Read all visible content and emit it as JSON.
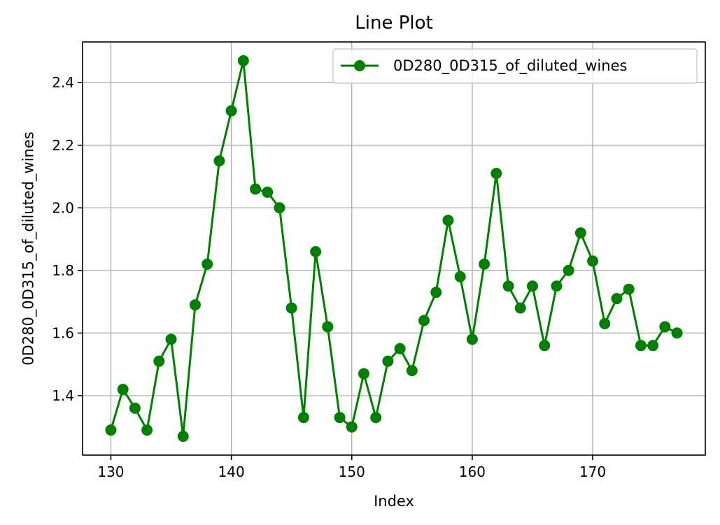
{
  "chart_data": {
    "type": "line",
    "title": "Line Plot",
    "xlabel": "Index",
    "ylabel": "0D280_0D315_of_diluted_wines",
    "xlim": [
      127.65,
      179.35
    ],
    "ylim": [
      1.21,
      2.53
    ],
    "xticks": [
      130,
      140,
      150,
      160,
      170
    ],
    "yticks": [
      1.4,
      1.6,
      1.8,
      2.0,
      2.2,
      2.4
    ],
    "ytick_labels": [
      "1.4",
      "1.6",
      "1.8",
      "2.0",
      "2.2",
      "2.4"
    ],
    "grid": true,
    "legend_position": "top-right",
    "series": [
      {
        "name": "0D280_0D315_of_diluted_wines",
        "color": "#008000",
        "marker": "circle",
        "x": [
          130,
          131,
          132,
          133,
          134,
          135,
          136,
          137,
          138,
          139,
          140,
          141,
          142,
          143,
          144,
          145,
          146,
          147,
          148,
          149,
          150,
          151,
          152,
          153,
          154,
          155,
          156,
          157,
          158,
          159,
          160,
          161,
          162,
          163,
          164,
          165,
          166,
          167,
          168,
          169,
          170,
          171,
          172,
          173,
          174,
          175,
          176,
          177
        ],
        "y": [
          1.29,
          1.42,
          1.36,
          1.29,
          1.51,
          1.58,
          1.27,
          1.69,
          1.82,
          2.15,
          2.31,
          2.47,
          2.06,
          2.05,
          2.0,
          1.68,
          1.33,
          1.86,
          1.62,
          1.33,
          1.3,
          1.47,
          1.33,
          1.51,
          1.55,
          1.48,
          1.64,
          1.73,
          1.96,
          1.78,
          1.58,
          1.82,
          2.11,
          1.75,
          1.68,
          1.75,
          1.56,
          1.75,
          1.8,
          1.92,
          1.83,
          1.63,
          1.71,
          1.74,
          1.56,
          1.56,
          1.62,
          1.6
        ]
      }
    ]
  }
}
